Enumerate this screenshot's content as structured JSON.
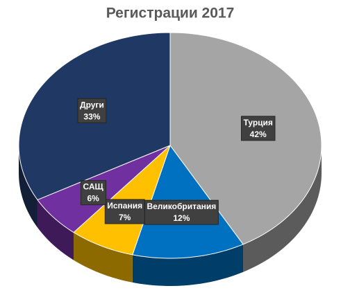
{
  "chart_data": {
    "type": "pie",
    "title": "Регистрации 2017",
    "categories": [
      "Турция",
      "Великобритания",
      "Испания",
      "САЩ",
      "Други"
    ],
    "values": [
      42,
      12,
      7,
      6,
      33
    ],
    "value_labels": [
      "42%",
      "12%",
      "7%",
      "6%",
      "33%"
    ],
    "colors": [
      "#a5a5a5",
      "#0070c0",
      "#ffc000",
      "#7030a0",
      "#203864"
    ]
  }
}
